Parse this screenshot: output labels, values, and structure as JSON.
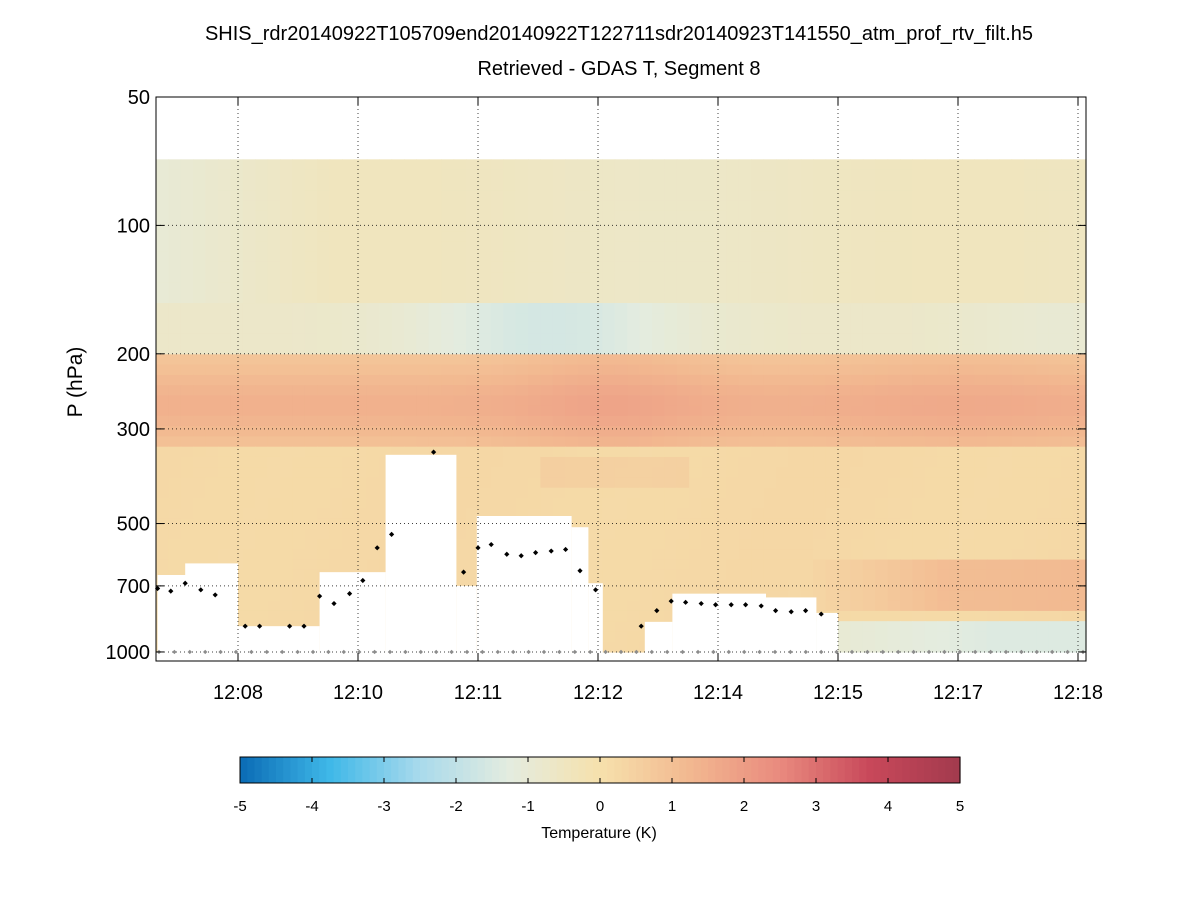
{
  "chart_data": {
    "type": "heatmap",
    "title": "SHIS_rdr20140922T105709end20140922T122711sdr20140923T141550_atm_prof_rtv_filt.h5",
    "subtitle": "Retrieved - GDAS T, Segment 8",
    "ylabel": "P (hPa)",
    "y_scale": "log",
    "y_reversed": true,
    "ylim": [
      1050,
      50
    ],
    "y_ticks": [
      50,
      100,
      200,
      300,
      500,
      700,
      1000
    ],
    "y_tick_labels": [
      "50",
      "100",
      "200",
      "300",
      "500",
      "700",
      "1000"
    ],
    "x_ticks": [
      0,
      1,
      2,
      3,
      4,
      5,
      6,
      7
    ],
    "x_tick_labels": [
      "12:08",
      "12:10",
      "12:11",
      "12:12",
      "12:14",
      "12:15",
      "12:17",
      "12:18"
    ],
    "grid": true,
    "colorbar": {
      "label": "Temperature (K)",
      "min": -5,
      "max": 5,
      "ticks": [
        -5,
        -4,
        -3,
        -2,
        -1,
        0,
        1,
        2,
        3,
        4,
        5
      ],
      "tick_labels": [
        "-5",
        "-4",
        "-3",
        "-2",
        "-1",
        "0",
        "1",
        "2",
        "3",
        "4",
        "5"
      ],
      "colormap": [
        "#0a6bb5",
        "#3fb8e8",
        "#a9daec",
        "#e4ecdf",
        "#f6e1ac",
        "#f2b890",
        "#e98a7e",
        "#c8485a",
        "#a33a4d"
      ]
    },
    "data_top_pressure": 70,
    "layers": [
      {
        "from_hPa": 70,
        "to_hPa": 148,
        "anomaly_K": -0.6,
        "note": "light blue / neutral, bluest at left"
      },
      {
        "from_hPa": 148,
        "to_hPa": 200,
        "anomaly_K": -1.2,
        "note": "blue minimum near 12:11"
      },
      {
        "from_hPa": 200,
        "to_hPa": 330,
        "anomaly_K": 1.3,
        "note": "warm orange band, max ~1.8 K near 12:12"
      },
      {
        "from_hPa": 330,
        "to_hPa": 1000,
        "anomaly_K": 0.3,
        "note": "near-neutral beige, warmer 650-800 hPa after 12:15, bluish below 850 hPa at right"
      }
    ],
    "surface_pressure_markers": {
      "pressure_hPa": 1000,
      "count": 61
    },
    "cloud_top_markers": [
      {
        "x": -0.67,
        "p": 710
      },
      {
        "x": -0.56,
        "p": 720
      },
      {
        "x": -0.44,
        "p": 690
      },
      {
        "x": -0.31,
        "p": 715
      },
      {
        "x": -0.19,
        "p": 735
      },
      {
        "x": 0.06,
        "p": 870
      },
      {
        "x": 0.18,
        "p": 870
      },
      {
        "x": 0.43,
        "p": 870
      },
      {
        "x": 0.55,
        "p": 870
      },
      {
        "x": 0.68,
        "p": 740
      },
      {
        "x": 0.8,
        "p": 770
      },
      {
        "x": 0.93,
        "p": 730
      },
      {
        "x": 1.04,
        "p": 680
      },
      {
        "x": 1.16,
        "p": 570
      },
      {
        "x": 1.28,
        "p": 530
      },
      {
        "x": 1.63,
        "p": 340
      },
      {
        "x": 1.88,
        "p": 650
      },
      {
        "x": 2.0,
        "p": 570
      },
      {
        "x": 2.11,
        "p": 560
      },
      {
        "x": 2.24,
        "p": 590
      },
      {
        "x": 2.36,
        "p": 595
      },
      {
        "x": 2.48,
        "p": 585
      },
      {
        "x": 2.61,
        "p": 580
      },
      {
        "x": 2.73,
        "p": 575
      },
      {
        "x": 2.85,
        "p": 645
      },
      {
        "x": 2.98,
        "p": 715
      },
      {
        "x": 3.36,
        "p": 870
      },
      {
        "x": 3.49,
        "p": 800
      },
      {
        "x": 3.61,
        "p": 760
      },
      {
        "x": 3.73,
        "p": 765
      },
      {
        "x": 3.86,
        "p": 770
      },
      {
        "x": 3.98,
        "p": 775
      },
      {
        "x": 4.11,
        "p": 775
      },
      {
        "x": 4.23,
        "p": 775
      },
      {
        "x": 4.36,
        "p": 780
      },
      {
        "x": 4.48,
        "p": 800
      },
      {
        "x": 4.61,
        "p": 805
      },
      {
        "x": 4.73,
        "p": 800
      },
      {
        "x": 4.86,
        "p": 815
      }
    ],
    "no_data_regions": [
      [
        -0.67,
        -0.19,
        660,
        1050
      ],
      [
        -0.44,
        0.0,
        620,
        1050
      ],
      [
        0.0,
        0.68,
        870,
        1050
      ],
      [
        0.68,
        1.23,
        650,
        1050
      ],
      [
        1.23,
        1.82,
        345,
        1050
      ],
      [
        1.82,
        1.99,
        700,
        1050
      ],
      [
        1.99,
        2.78,
        480,
        1050
      ],
      [
        2.78,
        2.92,
        510,
        1050
      ],
      [
        2.92,
        3.04,
        690,
        1050
      ],
      [
        3.04,
        3.39,
        1030,
        1050
      ],
      [
        3.39,
        3.62,
        850,
        1050
      ],
      [
        3.62,
        4.4,
        730,
        1050
      ],
      [
        4.4,
        4.82,
        745,
        1050
      ],
      [
        4.82,
        5.0,
        810,
        1050
      ]
    ]
  }
}
